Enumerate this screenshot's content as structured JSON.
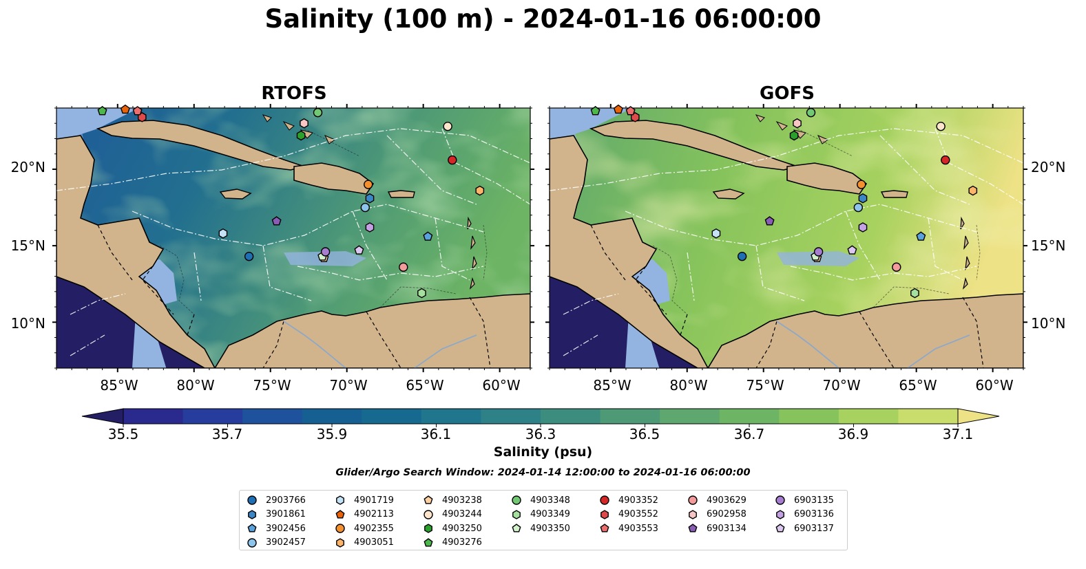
{
  "title": "Salinity (100 m) - 2024-01-16 06:00:00",
  "panels": [
    {
      "title": "RTOFS"
    },
    {
      "title": "GOFS"
    }
  ],
  "axes": {
    "lon_ticks": [
      "85°W",
      "80°W",
      "75°W",
      "70°W",
      "65°W",
      "60°W"
    ],
    "lon_values": [
      -85,
      -80,
      -75,
      -70,
      -65,
      -60
    ],
    "lat_ticks": [
      "20°N",
      "15°N",
      "10°N"
    ],
    "lat_values": [
      20,
      15,
      10
    ],
    "lon_range": [
      -89,
      -58
    ],
    "lat_range": [
      7,
      24
    ]
  },
  "colorbar": {
    "label": "Salinity (psu)",
    "ticks": [
      "35.5",
      "35.7",
      "35.9",
      "36.1",
      "36.3",
      "36.5",
      "36.7",
      "36.9",
      "37.1"
    ],
    "min": 35.5,
    "max": 37.1,
    "extend": "both",
    "colors": [
      "#241e64",
      "#2a2a8e",
      "#263d9e",
      "#1e529c",
      "#165f93",
      "#176a8f",
      "#20768c",
      "#2e8287",
      "#3d8d7f",
      "#4e9976",
      "#5ea76e",
      "#6db464",
      "#86c35c",
      "#a8d25f",
      "#c8dd6b",
      "#eee286"
    ],
    "colormap": "haline"
  },
  "search_window": "Glider/Argo Search Window: 2024-01-14 12:00:00 to 2024-01-16 06:00:00",
  "colors": {
    "land": "#d2b48c",
    "shallow_water": "#93b3e0",
    "deep_basin": "#241e64"
  },
  "legend": {
    "columns": [
      [
        {
          "id": "2903766",
          "marker": "circle",
          "color": "#1f6fb5"
        },
        {
          "id": "3901861",
          "marker": "hexagon",
          "color": "#3c86c6"
        },
        {
          "id": "3902456",
          "marker": "pentagon",
          "color": "#5aa2dc"
        },
        {
          "id": "3902457",
          "marker": "circle",
          "color": "#8cc4ec"
        }
      ],
      [
        {
          "id": "4901719",
          "marker": "hexagon",
          "color": "#c5e3f7"
        },
        {
          "id": "4902113",
          "marker": "pentagon",
          "color": "#e8630a"
        },
        {
          "id": "4902355",
          "marker": "circle",
          "color": "#f4912e"
        },
        {
          "id": "4903051",
          "marker": "hexagon",
          "color": "#fbb46a"
        }
      ],
      [
        {
          "id": "4903238",
          "marker": "pentagon",
          "color": "#fdd0a2"
        },
        {
          "id": "4903244",
          "marker": "circle",
          "color": "#fde6cc"
        },
        {
          "id": "4903250",
          "marker": "hexagon",
          "color": "#2ca02c"
        },
        {
          "id": "4903276",
          "marker": "pentagon",
          "color": "#4cb84c"
        }
      ],
      [
        {
          "id": "4903348",
          "marker": "circle",
          "color": "#73c973"
        },
        {
          "id": "4903349",
          "marker": "hexagon",
          "color": "#a6e09e"
        },
        {
          "id": "4903350",
          "marker": "pentagon",
          "color": "#d2f2cc"
        }
      ],
      [
        {
          "id": "4903352",
          "marker": "circle",
          "color": "#d62728"
        },
        {
          "id": "4903552",
          "marker": "hexagon",
          "color": "#e04a4a"
        },
        {
          "id": "4903553",
          "marker": "pentagon",
          "color": "#ec6f6f"
        }
      ],
      [
        {
          "id": "4903629",
          "marker": "circle",
          "color": "#f39a9a"
        },
        {
          "id": "6902958",
          "marker": "hexagon",
          "color": "#f9c6c6"
        },
        {
          "id": "6903134",
          "marker": "pentagon",
          "color": "#8a5db5"
        }
      ],
      [
        {
          "id": "6903135",
          "marker": "circle",
          "color": "#a77dd0"
        },
        {
          "id": "6903136",
          "marker": "hexagon",
          "color": "#c3a1e3"
        },
        {
          "id": "6903137",
          "marker": "pentagon",
          "color": "#dcc7f1"
        }
      ]
    ]
  },
  "floats": [
    {
      "id": "2903766",
      "lon": -76.4,
      "lat": 14.3
    },
    {
      "id": "3901861",
      "lon": -68.5,
      "lat": 18.1
    },
    {
      "id": "3902456",
      "lon": -64.7,
      "lat": 15.6
    },
    {
      "id": "3902457",
      "lon": -68.8,
      "lat": 17.5
    },
    {
      "id": "4901719",
      "lon": -78.1,
      "lat": 15.8
    },
    {
      "id": "4902113",
      "lon": -84.5,
      "lat": 23.9
    },
    {
      "id": "4902355",
      "lon": -68.6,
      "lat": 19.0
    },
    {
      "id": "4903051",
      "lon": -61.3,
      "lat": 18.6
    },
    {
      "id": "4903238",
      "lon": -71.5,
      "lat": 14.2
    },
    {
      "id": "4903244",
      "lon": -63.4,
      "lat": 22.8
    },
    {
      "id": "4903250",
      "lon": -73.0,
      "lat": 22.2
    },
    {
      "id": "4903276",
      "lon": -86.0,
      "lat": 23.8
    },
    {
      "id": "4903348",
      "lon": -71.9,
      "lat": 23.7
    },
    {
      "id": "4903349",
      "lon": -65.1,
      "lat": 11.9
    },
    {
      "id": "4903350",
      "lon": -71.6,
      "lat": 14.3
    },
    {
      "id": "4903352",
      "lon": -63.1,
      "lat": 20.6
    },
    {
      "id": "4903552",
      "lon": -83.4,
      "lat": 23.4
    },
    {
      "id": "4903553",
      "lon": -83.7,
      "lat": 23.8
    },
    {
      "id": "4903629",
      "lon": -66.3,
      "lat": 13.6
    },
    {
      "id": "6902958",
      "lon": -72.8,
      "lat": 23.0
    },
    {
      "id": "6903134",
      "lon": -74.6,
      "lat": 16.6
    },
    {
      "id": "6903135",
      "lon": -71.4,
      "lat": 14.6
    },
    {
      "id": "6903136",
      "lon": -68.5,
      "lat": 16.2
    },
    {
      "id": "6903137",
      "lon": -69.2,
      "lat": 14.7
    }
  ]
}
